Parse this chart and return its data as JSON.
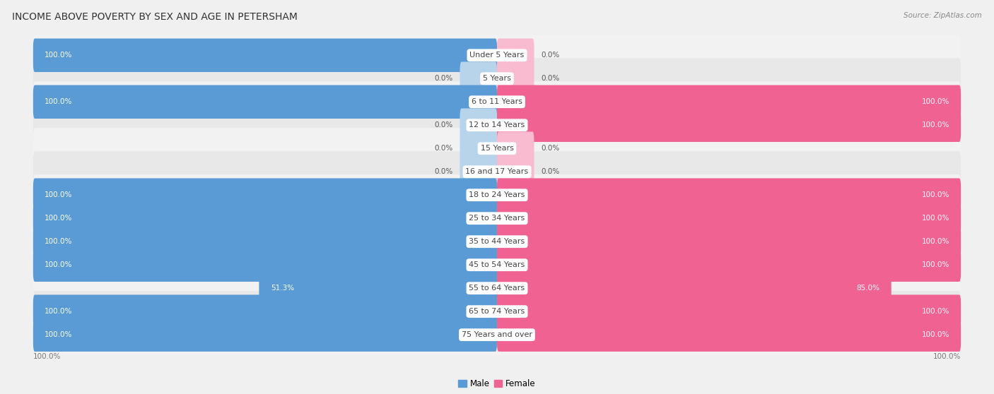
{
  "title": "INCOME ABOVE POVERTY BY SEX AND AGE IN PETERSHAM",
  "source": "Source: ZipAtlas.com",
  "categories": [
    "Under 5 Years",
    "5 Years",
    "6 to 11 Years",
    "12 to 14 Years",
    "15 Years",
    "16 and 17 Years",
    "18 to 24 Years",
    "25 to 34 Years",
    "35 to 44 Years",
    "45 to 54 Years",
    "55 to 64 Years",
    "65 to 74 Years",
    "75 Years and over"
  ],
  "male_values": [
    100.0,
    0.0,
    100.0,
    0.0,
    0.0,
    0.0,
    100.0,
    100.0,
    100.0,
    100.0,
    51.3,
    100.0,
    100.0
  ],
  "female_values": [
    0.0,
    0.0,
    100.0,
    100.0,
    0.0,
    0.0,
    100.0,
    100.0,
    100.0,
    100.0,
    85.0,
    100.0,
    100.0
  ],
  "male_color": "#5b9bd5",
  "female_color": "#f06292",
  "male_color_light": "#b8d4eb",
  "female_color_light": "#f8bbd0",
  "row_color_even": "#f2f2f2",
  "row_color_odd": "#e8e8e8",
  "bg_color": "#f0f0f0",
  "title_fontsize": 10,
  "label_fontsize": 8,
  "value_fontsize": 7.5,
  "legend_fontsize": 8.5,
  "axis_label_fontsize": 7.5
}
